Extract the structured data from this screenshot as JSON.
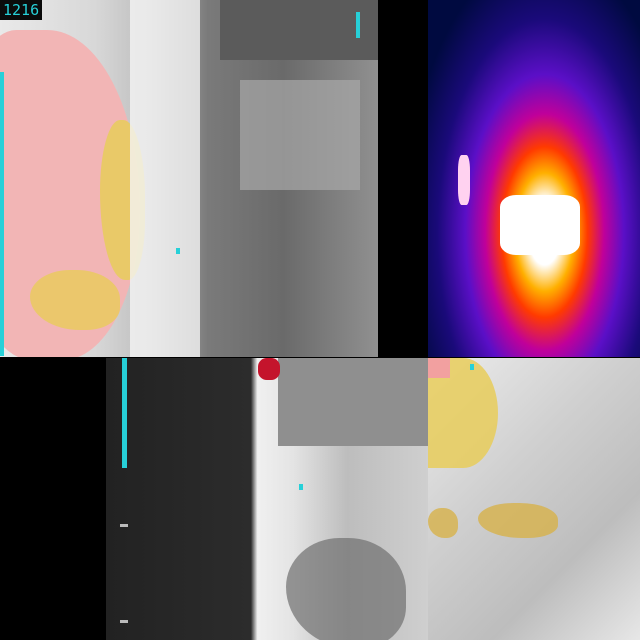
{
  "tiles": [
    {
      "id": "top-left",
      "palette": "grayscale-with-fire-overlay",
      "readout": "1216"
    },
    {
      "id": "top-right",
      "palette": "ironbow"
    },
    {
      "id": "bottom-left",
      "palette": "grayscale"
    },
    {
      "id": "bottom-right",
      "palette": "grayscale-with-fire-overlay"
    }
  ],
  "colors": {
    "hud": "#27d0d8",
    "fire_hot": "#f3b3b3",
    "fire_warm": "#e6c85a"
  }
}
